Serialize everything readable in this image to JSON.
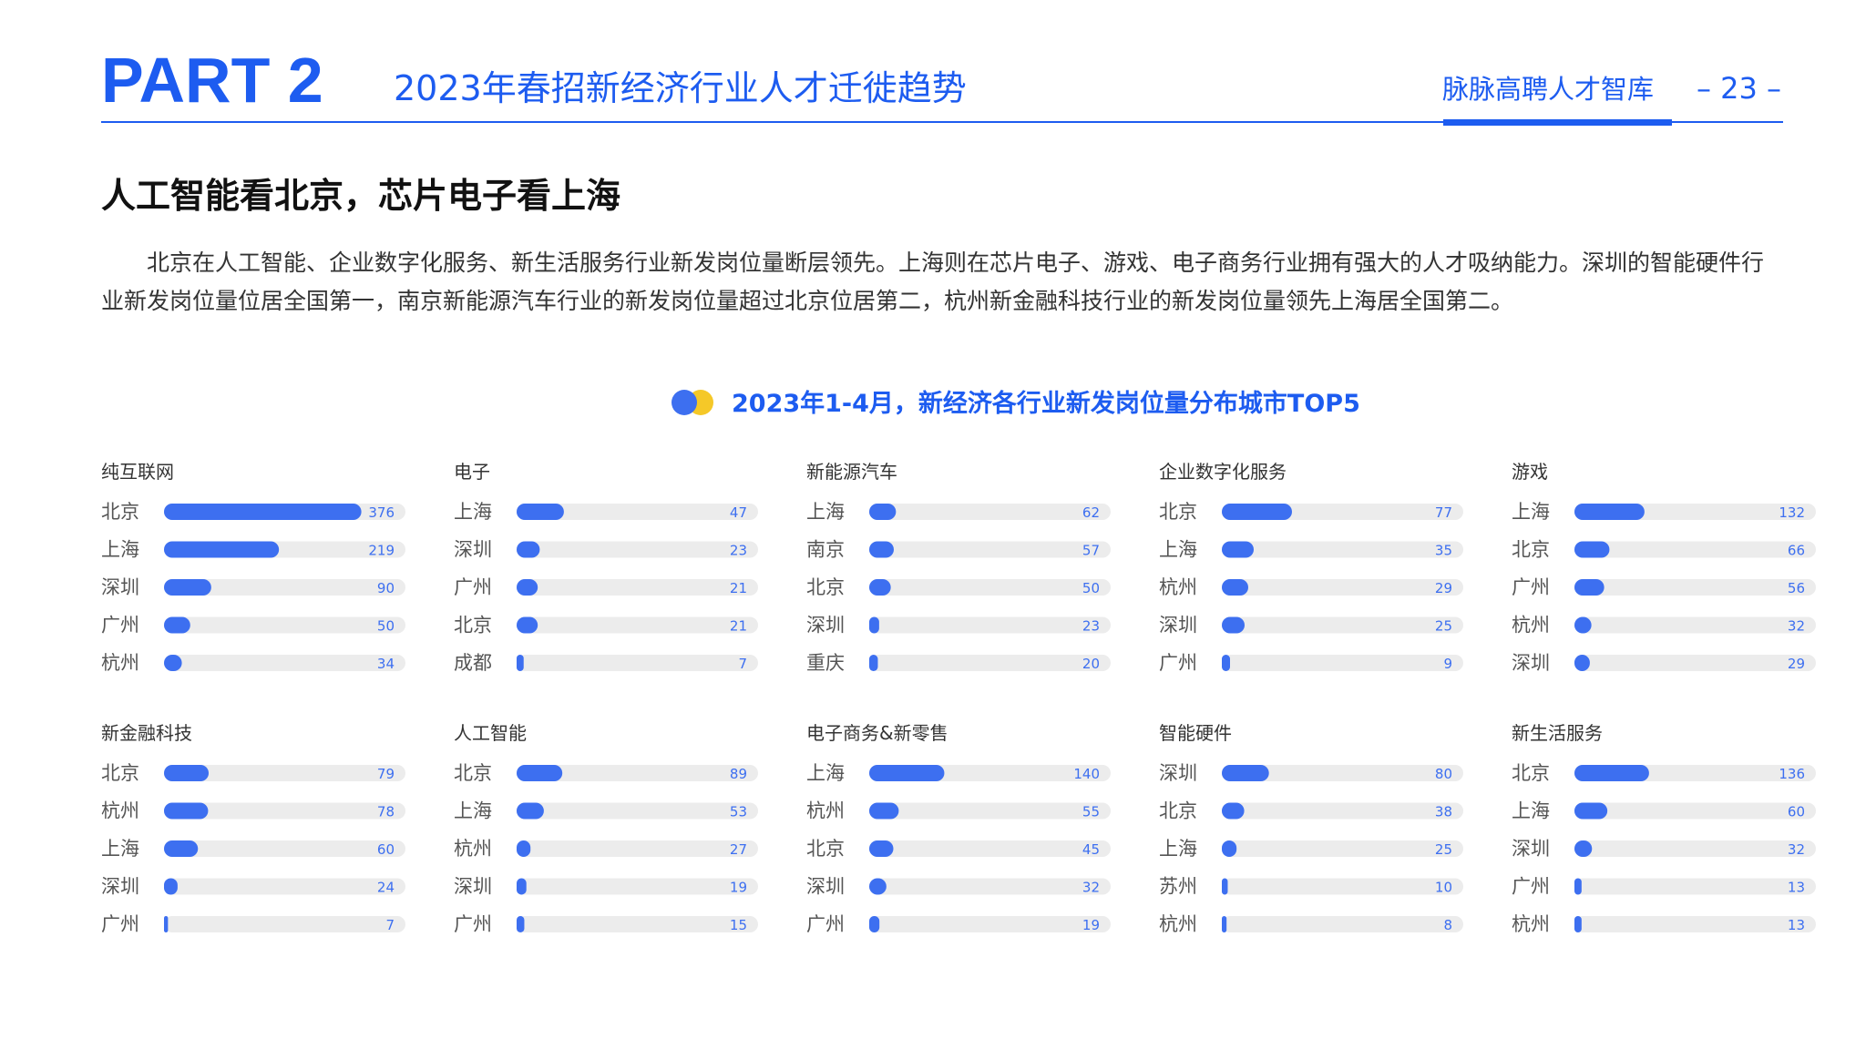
{
  "header": {
    "part": "PART 2",
    "subtitle": "2023年春招新经济行业人才迁徙趋势",
    "brand": "脉脉高聘人才智库",
    "page": "– 23 –"
  },
  "headline": "人工智能看北京，芯片电子看上海",
  "paragraph": "北京在人工智能、企业数字化服务、新生活服务行业新发岗位量断层领先。上海则在芯片电子、游戏、电子商务行业拥有强大的人才吸纳能力。深圳的智能硬件行业新发岗位量位居全国第一，南京新能源汽车行业的新发岗位量超过北京位居第二，杭州新金融科技行业的新发岗位量领先上海居全国第二。",
  "chart_title": "2023年1-4月，新经济各行业新发岗位量分布城市TOP5",
  "chart_data": [
    {
      "type": "bar",
      "orientation": "horizontal",
      "title": "纯互联网",
      "categories": [
        "北京",
        "上海",
        "深圳",
        "广州",
        "杭州"
      ],
      "values": [
        376,
        219,
        90,
        50,
        34
      ],
      "xlim": [
        0,
        460
      ],
      "color": "#3d6ff0"
    },
    {
      "type": "bar",
      "orientation": "horizontal",
      "title": "电子",
      "categories": [
        "上海",
        "深圳",
        "广州",
        "北京",
        "成都"
      ],
      "values": [
        47,
        23,
        21,
        21,
        7
      ],
      "xlim": [
        0,
        240
      ],
      "color": "#3d6ff0"
    },
    {
      "type": "bar",
      "orientation": "horizontal",
      "title": "新能源汽车",
      "categories": [
        "上海",
        "南京",
        "北京",
        "深圳",
        "重庆"
      ],
      "values": [
        62,
        57,
        50,
        23,
        20
      ],
      "xlim": [
        0,
        560
      ],
      "color": "#3d6ff0"
    },
    {
      "type": "bar",
      "orientation": "horizontal",
      "title": "企业数字化服务",
      "categories": [
        "北京",
        "上海",
        "杭州",
        "深圳",
        "广州"
      ],
      "values": [
        77,
        35,
        29,
        25,
        9
      ],
      "xlim": [
        0,
        265
      ],
      "color": "#3d6ff0"
    },
    {
      "type": "bar",
      "orientation": "horizontal",
      "title": "游戏",
      "categories": [
        "上海",
        "北京",
        "广州",
        "杭州",
        "深圳"
      ],
      "values": [
        132,
        66,
        56,
        32,
        29
      ],
      "xlim": [
        0,
        455
      ],
      "color": "#3d6ff0"
    },
    {
      "type": "bar",
      "orientation": "horizontal",
      "title": "新金融科技",
      "categories": [
        "北京",
        "杭州",
        "上海",
        "深圳",
        "广州"
      ],
      "values": [
        79,
        78,
        60,
        24,
        7
      ],
      "xlim": [
        0,
        427
      ],
      "color": "#3d6ff0"
    },
    {
      "type": "bar",
      "orientation": "horizontal",
      "title": "人工智能",
      "categories": [
        "北京",
        "上海",
        "杭州",
        "深圳",
        "广州"
      ],
      "values": [
        89,
        53,
        27,
        19,
        15
      ],
      "xlim": [
        0,
        470
      ],
      "color": "#3d6ff0"
    },
    {
      "type": "bar",
      "orientation": "horizontal",
      "title": "电子商务&新零售",
      "categories": [
        "上海",
        "杭州",
        "北京",
        "深圳",
        "广州"
      ],
      "values": [
        140,
        55,
        45,
        32,
        19
      ],
      "xlim": [
        0,
        450
      ],
      "color": "#3d6ff0"
    },
    {
      "type": "bar",
      "orientation": "horizontal",
      "title": "智能硬件",
      "categories": [
        "深圳",
        "北京",
        "上海",
        "苏州",
        "杭州"
      ],
      "values": [
        80,
        38,
        25,
        10,
        8
      ],
      "xlim": [
        0,
        410
      ],
      "color": "#3d6ff0"
    },
    {
      "type": "bar",
      "orientation": "horizontal",
      "title": "新生活服务",
      "categories": [
        "北京",
        "上海",
        "深圳",
        "广州",
        "杭州"
      ],
      "values": [
        136,
        60,
        32,
        13,
        13
      ],
      "xlim": [
        0,
        440
      ],
      "color": "#3d6ff0"
    }
  ]
}
